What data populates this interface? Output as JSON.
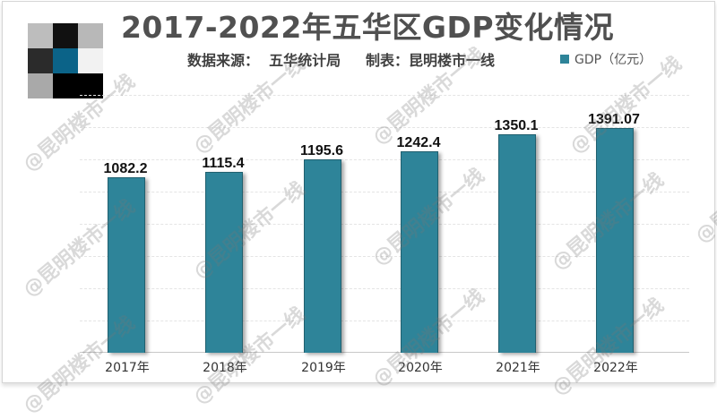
{
  "title": "2017-2022年五华区GDP变化情况",
  "subtitle": "数据来源：  五华统计局     制表：昆明楼市一线",
  "legend": {
    "label": "GDP（亿元）",
    "color": "#2e8499"
  },
  "watermark": "@昆明楼市一线",
  "logo_colors": [
    "#bdbdbd",
    "#111111",
    "#b8b8b8",
    "#2b2b2b",
    "#0b6388",
    "#f2f2f2",
    "#a9a9a9",
    "#000000",
    "#000000"
  ],
  "chart_data": {
    "type": "bar",
    "title": "2017-2022年五华区GDP变化情况",
    "subtitle": "数据来源：五华统计局  制表：昆明楼市一线",
    "categories": [
      "2017年",
      "2018年",
      "2019年",
      "2020年",
      "2021年",
      "2022年"
    ],
    "series": [
      {
        "name": "GDP（亿元）",
        "values": [
          1082.2,
          1115.4,
          1195.6,
          1242.4,
          1350.1,
          1391.07
        ],
        "color": "#2e8499"
      }
    ],
    "data_labels": [
      "1082.2",
      "1115.4",
      "1195.6",
      "1242.4",
      "1350.1",
      "1391.07"
    ],
    "xlabel": "",
    "ylabel": "",
    "ylim": [
      0,
      1600
    ],
    "grid": true,
    "y_axis_visible": false,
    "legend_position": "top-right"
  }
}
